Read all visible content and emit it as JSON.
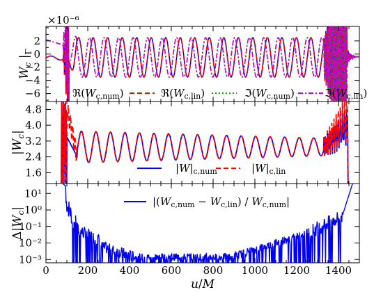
{
  "chart_data": [
    {
      "type": "line",
      "panel": "top",
      "ylabel": "W_c |_Γ",
      "scale_label": "×10⁻⁶",
      "xlim": [
        0,
        1500
      ],
      "ylim": [
        -7.2,
        4.2
      ],
      "yticks": [
        -6,
        -4,
        -2,
        0,
        2
      ],
      "ytick_labels": [
        "−6",
        "−4",
        "−2",
        "0",
        "2"
      ],
      "legend_position": "bottom",
      "series": [
        {
          "name": "ℜ(W_c,num)",
          "color": "#0000ff",
          "style": "solid",
          "part": "real"
        },
        {
          "name": "ℜ(W_c,lin)",
          "color": "#ff0000",
          "style": "dashed",
          "part": "real"
        },
        {
          "name": "ℑ(W_c,num)",
          "color": "#00aa00",
          "style": "dotted",
          "part": "imag"
        },
        {
          "name": "ℑ(W_c,lin)",
          "color": "#cc00cc",
          "style": "dashdot",
          "part": "imag"
        }
      ],
      "wave": {
        "amplitude": 3.0,
        "offset": -0.5,
        "period": 69.5,
        "start": 150,
        "end": 1330
      }
    },
    {
      "type": "line",
      "panel": "middle",
      "ylabel": "|W_c|",
      "xlim": [
        0,
        1500
      ],
      "ylim": [
        1.05,
        5.2
      ],
      "yticks": [
        1.6,
        2.4,
        3.2,
        4.0,
        4.8
      ],
      "ytick_labels": [
        "1.6",
        "2.4",
        "3.2",
        "4.0",
        "4.8"
      ],
      "legend_position": "lower-center",
      "series": [
        {
          "name": "|W|_c,num",
          "color": "#0000ff",
          "style": "solid"
        },
        {
          "name": "|W|_c,lin",
          "color": "#ff0000",
          "style": "dashed"
        }
      ],
      "wave": {
        "mean": 2.9,
        "amplitude": 0.8,
        "period": 69.5,
        "start": 150,
        "end": 1330
      }
    },
    {
      "type": "line",
      "panel": "bottom",
      "ylabel": "Δ|W_c|",
      "xlabel": "u/M",
      "xlim": [
        0,
        1500
      ],
      "yscale": "log",
      "ylim_exp": [
        -3.2,
        1.6
      ],
      "yticks_exp": [
        -3,
        -2,
        -1,
        0,
        1
      ],
      "ytick_labels": [
        "10⁻³",
        "10⁻²",
        "10⁻¹",
        "10⁰",
        "10¹"
      ],
      "xticks": [
        0,
        200,
        400,
        600,
        800,
        1000,
        1200,
        1400
      ],
      "xtick_labels": [
        "0",
        "200",
        "400",
        "600",
        "800",
        "1000",
        "1200",
        "1400"
      ],
      "legend_position": "top-center",
      "series": [
        {
          "name": "|(W_c,num − W_c,lin) / W_c,num|",
          "color": "#0000ff",
          "style": "solid"
        }
      ]
    }
  ]
}
